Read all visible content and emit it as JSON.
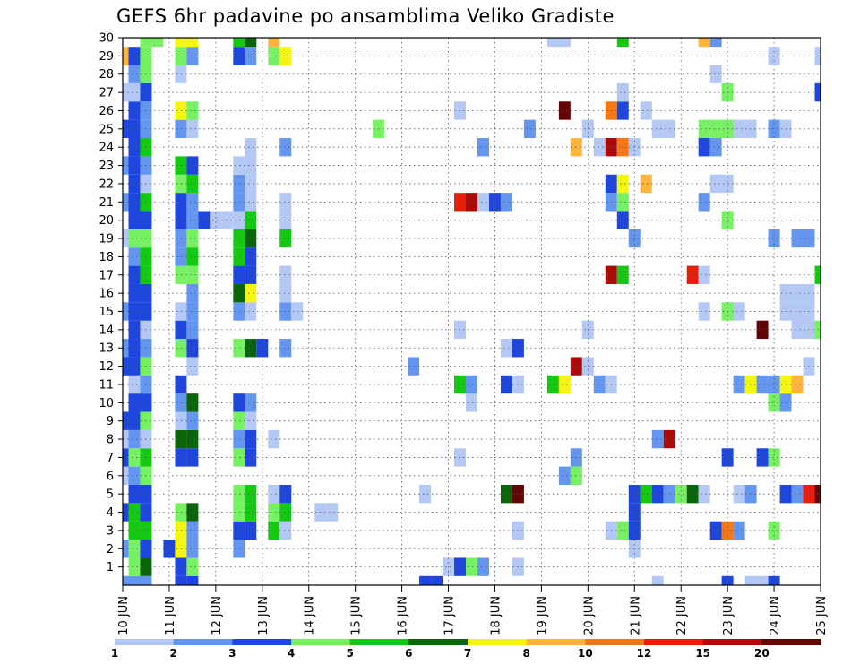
{
  "chart_data": {
    "type": "heatmap",
    "title": "GEFS 6hr padavine po ansamblima Veliko Gradiste",
    "x_tick_labels": [
      "10 JUN",
      "11 JUN",
      "12 JUN",
      "13 JUN",
      "14 JUN",
      "15 JUN",
      "16 JUN",
      "17 JUN",
      "18 JUN",
      "19 JUN",
      "20 JUN",
      "21 JUN",
      "22 JUN",
      "23 JUN",
      "24 JUN",
      "25 JUN"
    ],
    "y_tick_labels": [
      "1",
      "2",
      "3",
      "4",
      "5",
      "6",
      "7",
      "8",
      "9",
      "10",
      "11",
      "12",
      "13",
      "14",
      "15",
      "16",
      "17",
      "18",
      "19",
      "20",
      "21",
      "22",
      "23",
      "24",
      "25",
      "26",
      "27",
      "28",
      "29",
      "30"
    ],
    "xlim": [
      0,
      60
    ],
    "ylim": [
      0,
      30
    ],
    "grid": true,
    "colorbar": {
      "labels": [
        "1",
        "2",
        "3",
        "4",
        "5",
        "6",
        "7",
        "8",
        "10",
        "12",
        "15",
        "20"
      ],
      "colors": [
        "#b4c8f5",
        "#6496f0",
        "#1e46dc",
        "#78f064",
        "#14c814",
        "#0a640a",
        "#f5f514",
        "#ffb43c",
        "#f57814",
        "#e61e0a",
        "#aa0a0a",
        "#640505"
      ]
    },
    "cells": [
      [
        0,
        0,
        2
      ],
      [
        1,
        0,
        2
      ],
      [
        2,
        0,
        2
      ],
      [
        5,
        0,
        3
      ],
      [
        6,
        0,
        3
      ],
      [
        26,
        0,
        3
      ],
      [
        27,
        0,
        3
      ],
      [
        46,
        0,
        1
      ],
      [
        52,
        0,
        3
      ],
      [
        54,
        0,
        1
      ],
      [
        55,
        0,
        1
      ],
      [
        56,
        0,
        3
      ],
      [
        1,
        1,
        4
      ],
      [
        2,
        1,
        6
      ],
      [
        5,
        1,
        3
      ],
      [
        6,
        1,
        4
      ],
      [
        28,
        1,
        1
      ],
      [
        29,
        1,
        3
      ],
      [
        30,
        1,
        4
      ],
      [
        31,
        1,
        2
      ],
      [
        34,
        1,
        1
      ],
      [
        0,
        2,
        2
      ],
      [
        1,
        2,
        4
      ],
      [
        2,
        2,
        3
      ],
      [
        4,
        2,
        3
      ],
      [
        5,
        2,
        7
      ],
      [
        6,
        2,
        2
      ],
      [
        10,
        2,
        2
      ],
      [
        44,
        2,
        1
      ],
      [
        1,
        3,
        5
      ],
      [
        2,
        3,
        5
      ],
      [
        5,
        3,
        7
      ],
      [
        6,
        3,
        2
      ],
      [
        10,
        3,
        3
      ],
      [
        11,
        3,
        3
      ],
      [
        13,
        3,
        5
      ],
      [
        14,
        3,
        1
      ],
      [
        34,
        3,
        1
      ],
      [
        42,
        3,
        1
      ],
      [
        43,
        3,
        4
      ],
      [
        44,
        3,
        3
      ],
      [
        51,
        3,
        3
      ],
      [
        52,
        3,
        9
      ],
      [
        53,
        3,
        2
      ],
      [
        56,
        3,
        4
      ],
      [
        0,
        4,
        3
      ],
      [
        1,
        4,
        5
      ],
      [
        2,
        4,
        3
      ],
      [
        5,
        4,
        4
      ],
      [
        6,
        4,
        6
      ],
      [
        10,
        4,
        4
      ],
      [
        11,
        4,
        5
      ],
      [
        13,
        4,
        4
      ],
      [
        14,
        4,
        5
      ],
      [
        17,
        4,
        1
      ],
      [
        18,
        4,
        1
      ],
      [
        44,
        4,
        3
      ],
      [
        1,
        5,
        3
      ],
      [
        2,
        5,
        3
      ],
      [
        10,
        5,
        4
      ],
      [
        11,
        5,
        5
      ],
      [
        13,
        5,
        1
      ],
      [
        14,
        5,
        3
      ],
      [
        26,
        5,
        1
      ],
      [
        33,
        5,
        6
      ],
      [
        34,
        5,
        12
      ],
      [
        44,
        5,
        3
      ],
      [
        45,
        5,
        5
      ],
      [
        46,
        5,
        3
      ],
      [
        47,
        5,
        2
      ],
      [
        48,
        5,
        4
      ],
      [
        49,
        5,
        6
      ],
      [
        50,
        5,
        1
      ],
      [
        53,
        5,
        1
      ],
      [
        54,
        5,
        2
      ],
      [
        57,
        5,
        3
      ],
      [
        58,
        5,
        2
      ],
      [
        59,
        5,
        10
      ],
      [
        60,
        5,
        12
      ],
      [
        0,
        6,
        1
      ],
      [
        1,
        6,
        2
      ],
      [
        2,
        6,
        4
      ],
      [
        38,
        6,
        2
      ],
      [
        39,
        6,
        4
      ],
      [
        0,
        7,
        3
      ],
      [
        1,
        7,
        4
      ],
      [
        2,
        7,
        5
      ],
      [
        5,
        7,
        3
      ],
      [
        6,
        7,
        3
      ],
      [
        10,
        7,
        4
      ],
      [
        11,
        7,
        3
      ],
      [
        29,
        7,
        1
      ],
      [
        39,
        7,
        2
      ],
      [
        52,
        7,
        3
      ],
      [
        55,
        7,
        3
      ],
      [
        56,
        7,
        4
      ],
      [
        0,
        8,
        1
      ],
      [
        1,
        8,
        2
      ],
      [
        2,
        8,
        1
      ],
      [
        5,
        8,
        6
      ],
      [
        6,
        8,
        6
      ],
      [
        10,
        8,
        2
      ],
      [
        11,
        8,
        3
      ],
      [
        13,
        8,
        1
      ],
      [
        46,
        8,
        2
      ],
      [
        47,
        8,
        11
      ],
      [
        0,
        9,
        3
      ],
      [
        1,
        9,
        3
      ],
      [
        2,
        9,
        4
      ],
      [
        5,
        9,
        1
      ],
      [
        6,
        9,
        2
      ],
      [
        10,
        9,
        4
      ],
      [
        11,
        9,
        1
      ],
      [
        1,
        10,
        3
      ],
      [
        2,
        10,
        3
      ],
      [
        5,
        10,
        2
      ],
      [
        6,
        10,
        6
      ],
      [
        10,
        10,
        3
      ],
      [
        11,
        10,
        2
      ],
      [
        30,
        10,
        1
      ],
      [
        56,
        10,
        4
      ],
      [
        57,
        10,
        2
      ],
      [
        1,
        11,
        1
      ],
      [
        2,
        11,
        2
      ],
      [
        5,
        11,
        3
      ],
      [
        29,
        11,
        5
      ],
      [
        30,
        11,
        2
      ],
      [
        33,
        11,
        3
      ],
      [
        34,
        11,
        1
      ],
      [
        37,
        11,
        5
      ],
      [
        38,
        11,
        7
      ],
      [
        41,
        11,
        2
      ],
      [
        42,
        11,
        1
      ],
      [
        53,
        11,
        2
      ],
      [
        54,
        11,
        7
      ],
      [
        55,
        11,
        2
      ],
      [
        56,
        11,
        2
      ],
      [
        57,
        11,
        7
      ],
      [
        58,
        11,
        8
      ],
      [
        0,
        12,
        3
      ],
      [
        1,
        12,
        3
      ],
      [
        2,
        12,
        4
      ],
      [
        6,
        12,
        1
      ],
      [
        25,
        12,
        2
      ],
      [
        39,
        12,
        11
      ],
      [
        40,
        12,
        1
      ],
      [
        59,
        12,
        1
      ],
      [
        0,
        13,
        2
      ],
      [
        1,
        13,
        3
      ],
      [
        2,
        13,
        2
      ],
      [
        5,
        13,
        4
      ],
      [
        6,
        13,
        3
      ],
      [
        10,
        13,
        4
      ],
      [
        11,
        13,
        6
      ],
      [
        12,
        13,
        3
      ],
      [
        14,
        13,
        2
      ],
      [
        33,
        13,
        1
      ],
      [
        34,
        13,
        3
      ],
      [
        1,
        14,
        3
      ],
      [
        2,
        14,
        1
      ],
      [
        5,
        14,
        3
      ],
      [
        6,
        14,
        2
      ],
      [
        29,
        14,
        1
      ],
      [
        40,
        14,
        1
      ],
      [
        55,
        14,
        12
      ],
      [
        58,
        14,
        1
      ],
      [
        59,
        14,
        1
      ],
      [
        60,
        14,
        4
      ],
      [
        0,
        15,
        2
      ],
      [
        1,
        15,
        3
      ],
      [
        2,
        15,
        3
      ],
      [
        5,
        15,
        1
      ],
      [
        6,
        15,
        2
      ],
      [
        10,
        15,
        2
      ],
      [
        11,
        15,
        1
      ],
      [
        14,
        15,
        2
      ],
      [
        15,
        15,
        1
      ],
      [
        50,
        15,
        1
      ],
      [
        52,
        15,
        4
      ],
      [
        53,
        15,
        1
      ],
      [
        57,
        15,
        1
      ],
      [
        58,
        15,
        1
      ],
      [
        59,
        15,
        1
      ],
      [
        1,
        16,
        3
      ],
      [
        2,
        16,
        3
      ],
      [
        6,
        16,
        2
      ],
      [
        10,
        16,
        6
      ],
      [
        11,
        16,
        7
      ],
      [
        14,
        16,
        1
      ],
      [
        57,
        16,
        1
      ],
      [
        58,
        16,
        1
      ],
      [
        59,
        16,
        1
      ],
      [
        1,
        17,
        3
      ],
      [
        2,
        17,
        5
      ],
      [
        5,
        17,
        4
      ],
      [
        6,
        17,
        4
      ],
      [
        10,
        17,
        3
      ],
      [
        11,
        17,
        3
      ],
      [
        14,
        17,
        1
      ],
      [
        42,
        17,
        11
      ],
      [
        43,
        17,
        5
      ],
      [
        49,
        17,
        10
      ],
      [
        50,
        17,
        1
      ],
      [
        60,
        17,
        5
      ],
      [
        1,
        18,
        2
      ],
      [
        2,
        18,
        5
      ],
      [
        5,
        18,
        2
      ],
      [
        6,
        18,
        5
      ],
      [
        10,
        18,
        5
      ],
      [
        11,
        18,
        3
      ],
      [
        0,
        19,
        1
      ],
      [
        1,
        19,
        4
      ],
      [
        2,
        19,
        4
      ],
      [
        5,
        19,
        2
      ],
      [
        6,
        19,
        4
      ],
      [
        10,
        19,
        5
      ],
      [
        11,
        19,
        6
      ],
      [
        14,
        19,
        5
      ],
      [
        44,
        19,
        2
      ],
      [
        56,
        19,
        2
      ],
      [
        58,
        19,
        2
      ],
      [
        59,
        19,
        2
      ],
      [
        1,
        20,
        3
      ],
      [
        2,
        20,
        3
      ],
      [
        5,
        20,
        3
      ],
      [
        6,
        20,
        2
      ],
      [
        7,
        20,
        3
      ],
      [
        8,
        20,
        1
      ],
      [
        9,
        20,
        1
      ],
      [
        10,
        20,
        1
      ],
      [
        11,
        20,
        5
      ],
      [
        14,
        20,
        1
      ],
      [
        43,
        20,
        3
      ],
      [
        52,
        20,
        4
      ],
      [
        0,
        21,
        2
      ],
      [
        1,
        21,
        3
      ],
      [
        2,
        21,
        5
      ],
      [
        5,
        21,
        3
      ],
      [
        6,
        21,
        2
      ],
      [
        10,
        21,
        2
      ],
      [
        11,
        21,
        1
      ],
      [
        14,
        21,
        1
      ],
      [
        29,
        21,
        10
      ],
      [
        30,
        21,
        11
      ],
      [
        31,
        21,
        1
      ],
      [
        32,
        21,
        3
      ],
      [
        33,
        21,
        2
      ],
      [
        42,
        21,
        2
      ],
      [
        43,
        21,
        4
      ],
      [
        50,
        21,
        2
      ],
      [
        1,
        22,
        3
      ],
      [
        2,
        22,
        1
      ],
      [
        5,
        22,
        4
      ],
      [
        6,
        22,
        5
      ],
      [
        10,
        22,
        2
      ],
      [
        11,
        22,
        1
      ],
      [
        42,
        22,
        3
      ],
      [
        43,
        22,
        7
      ],
      [
        45,
        22,
        8
      ],
      [
        51,
        22,
        1
      ],
      [
        52,
        22,
        1
      ],
      [
        0,
        23,
        2
      ],
      [
        1,
        23,
        3
      ],
      [
        2,
        23,
        2
      ],
      [
        5,
        23,
        5
      ],
      [
        6,
        23,
        3
      ],
      [
        10,
        23,
        1
      ],
      [
        11,
        23,
        1
      ],
      [
        1,
        24,
        3
      ],
      [
        2,
        24,
        5
      ],
      [
        11,
        24,
        1
      ],
      [
        14,
        24,
        2
      ],
      [
        31,
        24,
        2
      ],
      [
        39,
        24,
        8
      ],
      [
        41,
        24,
        1
      ],
      [
        42,
        24,
        11
      ],
      [
        43,
        24,
        9
      ],
      [
        44,
        24,
        1
      ],
      [
        50,
        24,
        3
      ],
      [
        51,
        24,
        2
      ],
      [
        0,
        25,
        3
      ],
      [
        1,
        25,
        3
      ],
      [
        2,
        25,
        2
      ],
      [
        5,
        25,
        2
      ],
      [
        6,
        25,
        1
      ],
      [
        22,
        25,
        4
      ],
      [
        35,
        25,
        2
      ],
      [
        40,
        25,
        1
      ],
      [
        46,
        25,
        1
      ],
      [
        47,
        25,
        1
      ],
      [
        50,
        25,
        4
      ],
      [
        51,
        25,
        4
      ],
      [
        52,
        25,
        4
      ],
      [
        53,
        25,
        1
      ],
      [
        54,
        25,
        1
      ],
      [
        56,
        25,
        2
      ],
      [
        57,
        25,
        1
      ],
      [
        1,
        26,
        3
      ],
      [
        2,
        26,
        2
      ],
      [
        5,
        26,
        7
      ],
      [
        6,
        26,
        4
      ],
      [
        29,
        26,
        1
      ],
      [
        38,
        26,
        12
      ],
      [
        42,
        26,
        9
      ],
      [
        43,
        26,
        3
      ],
      [
        45,
        26,
        1
      ],
      [
        0,
        27,
        1
      ],
      [
        1,
        27,
        1
      ],
      [
        2,
        27,
        3
      ],
      [
        43,
        27,
        1
      ],
      [
        52,
        27,
        4
      ],
      [
        60,
        27,
        3
      ],
      [
        1,
        28,
        2
      ],
      [
        2,
        28,
        4
      ],
      [
        5,
        28,
        1
      ],
      [
        51,
        28,
        1
      ],
      [
        0,
        29,
        8
      ],
      [
        1,
        29,
        3
      ],
      [
        2,
        29,
        4
      ],
      [
        5,
        29,
        4
      ],
      [
        6,
        29,
        2
      ],
      [
        10,
        29,
        3
      ],
      [
        11,
        29,
        2
      ],
      [
        13,
        29,
        4
      ],
      [
        14,
        29,
        7
      ],
      [
        56,
        29,
        1
      ],
      [
        60,
        29,
        1
      ],
      [
        2,
        30,
        4
      ],
      [
        3,
        30,
        4
      ],
      [
        5,
        30,
        7
      ],
      [
        6,
        30,
        7
      ],
      [
        10,
        30,
        5
      ],
      [
        11,
        30,
        6
      ],
      [
        13,
        30,
        8
      ],
      [
        37,
        30,
        1
      ],
      [
        38,
        30,
        1
      ],
      [
        43,
        30,
        5
      ],
      [
        50,
        30,
        8
      ],
      [
        51,
        30,
        2
      ]
    ]
  }
}
